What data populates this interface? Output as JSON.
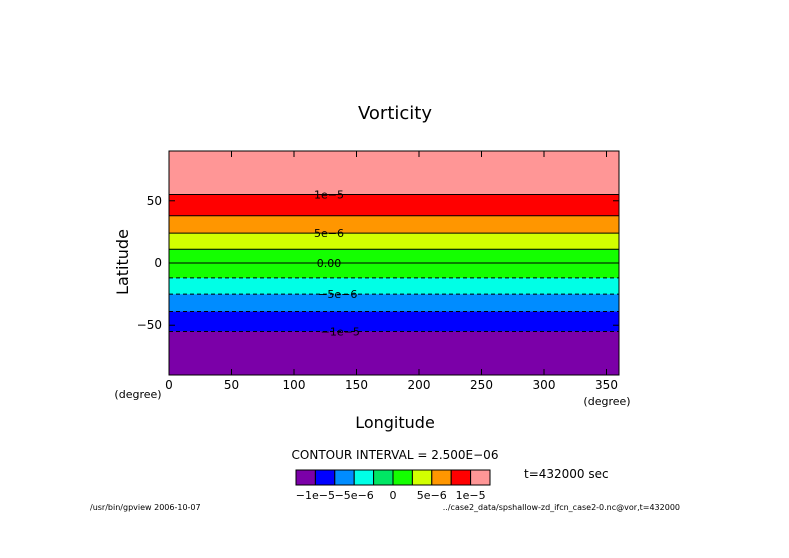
{
  "chart_data": {
    "type": "heatmap",
    "title": "Vorticity",
    "xlabel": "Longitude",
    "ylabel": "Latitude",
    "x_unit": "(degree)",
    "y_unit": "(degree)",
    "xlim": [
      0,
      360
    ],
    "ylim": [
      -90,
      90
    ],
    "x_ticks": [
      0,
      50,
      100,
      150,
      200,
      250,
      300,
      350
    ],
    "y_ticks": [
      50,
      0,
      -50
    ],
    "x_tick_labels": [
      "0",
      "50",
      "100",
      "150",
      "200",
      "250",
      "300",
      "350"
    ],
    "y_tick_labels": [
      "50",
      "0",
      "−50"
    ],
    "bands": [
      {
        "y0": -90,
        "y1": -55,
        "color": "#7b00a8"
      },
      {
        "y0": -55,
        "y1": -39,
        "color": "#0000ff"
      },
      {
        "y0": -39,
        "y1": -25,
        "color": "#008cff"
      },
      {
        "y0": -25,
        "y1": -12,
        "color": "#00ffe6"
      },
      {
        "y0": -12,
        "y1": 11,
        "color": "#14ff00"
      },
      {
        "y0": 11,
        "y1": 24,
        "color": "#d2ff00"
      },
      {
        "y0": 24,
        "y1": 38,
        "color": "#ff9600"
      },
      {
        "y0": 38,
        "y1": 55,
        "color": "#ff0000"
      },
      {
        "y0": 55,
        "y1": 90,
        "color": "#ff9696"
      }
    ],
    "contour_lines": [
      {
        "y": 55,
        "dashed": false
      },
      {
        "y": 38,
        "dashed": false
      },
      {
        "y": 24,
        "dashed": false
      },
      {
        "y": 11,
        "dashed": false
      },
      {
        "y": 0,
        "dashed": false
      },
      {
        "y": -12,
        "dashed": true
      },
      {
        "y": -25,
        "dashed": true
      },
      {
        "y": -39,
        "dashed": true
      },
      {
        "y": -55,
        "dashed": true
      }
    ],
    "contour_labels": [
      {
        "text": "1e−5",
        "x": 128,
        "y": 55
      },
      {
        "text": "5e−6",
        "x": 128,
        "y": 24
      },
      {
        "text": "0.00",
        "x": 128,
        "y": 0
      },
      {
        "text": "−5e−6",
        "x": 135,
        "y": -25
      },
      {
        "text": "−1e−5",
        "x": 137,
        "y": -55
      }
    ],
    "contour_interval": "CONTOUR INTERVAL = 2.500E−06",
    "colorbar": {
      "colors": [
        "#7b00a8",
        "#0000ff",
        "#008cff",
        "#00ffe6",
        "#00e664",
        "#14ff00",
        "#d2ff00",
        "#ff9600",
        "#ff0000",
        "#ff9696"
      ],
      "labels": [
        "−1e−5",
        "−5e−6",
        "0",
        "5e−6",
        "1e−5"
      ],
      "label_positions": [
        1,
        3,
        5,
        7,
        9
      ]
    },
    "time_label": "t=432000 sec",
    "footer_left": "/usr/bin/gpview  2006-10-07",
    "footer_right": "../case2_data/spshallow-zd_ifcn_case2-0.nc@vor,t=432000"
  }
}
